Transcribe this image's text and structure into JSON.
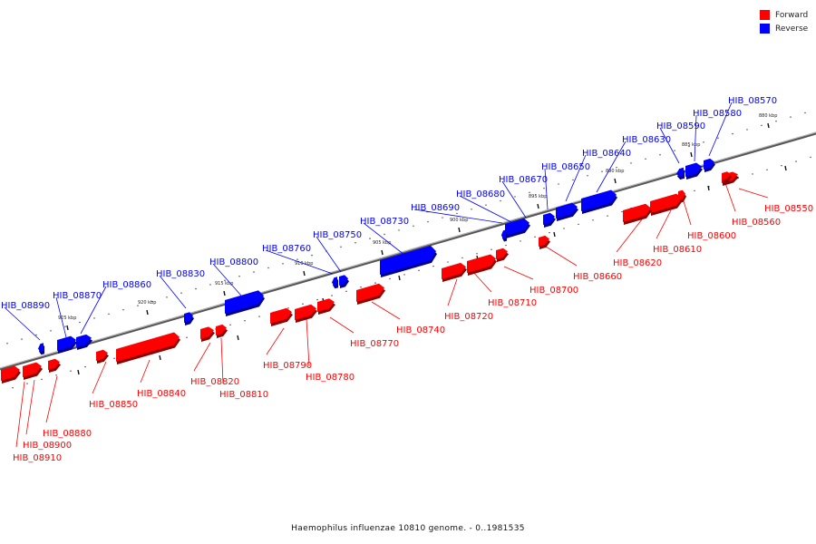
{
  "legend": {
    "forward_label": "Forward",
    "reverse_label": "Reverse",
    "forward_color": "#ff0000",
    "reverse_color": "#0000ff"
  },
  "caption": "Haemophilus influenzae 10810 genome. - 0..1981535",
  "scale": {
    "unit": "kbp",
    "ticks": [
      880,
      885,
      890,
      895,
      900,
      905,
      910,
      915,
      920,
      925
    ]
  },
  "genes_forward": [
    {
      "id": "HIB_08550",
      "label": "HIB_08550"
    },
    {
      "id": "HIB_08560",
      "label": "HIB_08560"
    },
    {
      "id": "HIB_08600",
      "label": "HIB_08600"
    },
    {
      "id": "HIB_08610",
      "label": "HIB_08610"
    },
    {
      "id": "HIB_08620",
      "label": "HIB_08620"
    },
    {
      "id": "HIB_08660",
      "label": "HIB_08660"
    },
    {
      "id": "HIB_08700",
      "label": "HIB_08700"
    },
    {
      "id": "HIB_08710",
      "label": "HIB_08710"
    },
    {
      "id": "HIB_08720",
      "label": "HIB_08720"
    },
    {
      "id": "HIB_08740",
      "label": "HIB_08740"
    },
    {
      "id": "HIB_08770",
      "label": "HIB_08770"
    },
    {
      "id": "HIB_08780",
      "label": "HIB_08780"
    },
    {
      "id": "HIB_08790",
      "label": "HIB_08790"
    },
    {
      "id": "HIB_08810",
      "label": "HIB_08810"
    },
    {
      "id": "HIB_08820",
      "label": "HIB_08820"
    },
    {
      "id": "HIB_08840",
      "label": "HIB_08840"
    },
    {
      "id": "HIB_08850",
      "label": "HIB_08850"
    },
    {
      "id": "HIB_08880",
      "label": "HIB_08880"
    },
    {
      "id": "HIB_08900",
      "label": "HIB_08900"
    },
    {
      "id": "HIB_08910",
      "label": "HIB_08910"
    }
  ],
  "genes_reverse": [
    {
      "id": "HIB_08570",
      "label": "HIB_08570"
    },
    {
      "id": "HIB_08580",
      "label": "HIB_08580"
    },
    {
      "id": "HIB_08590",
      "label": "HIB_08590"
    },
    {
      "id": "HIB_08630",
      "label": "HIB_08630"
    },
    {
      "id": "HIB_08640",
      "label": "HIB_08640"
    },
    {
      "id": "HIB_08650",
      "label": "HIB_08650"
    },
    {
      "id": "HIB_08670",
      "label": "HIB_08670"
    },
    {
      "id": "HIB_08680",
      "label": "HIB_08680"
    },
    {
      "id": "HIB_08690",
      "label": "HIB_08690"
    },
    {
      "id": "HIB_08730",
      "label": "HIB_08730"
    },
    {
      "id": "HIB_08750",
      "label": "HIB_08750"
    },
    {
      "id": "HIB_08760",
      "label": "HIB_08760"
    },
    {
      "id": "HIB_08800",
      "label": "HIB_08800"
    },
    {
      "id": "HIB_08830",
      "label": "HIB_08830"
    },
    {
      "id": "HIB_08860",
      "label": "HIB_08860"
    },
    {
      "id": "HIB_08870",
      "label": "HIB_08870"
    },
    {
      "id": "HIB_08890",
      "label": "HIB_08890"
    }
  ]
}
